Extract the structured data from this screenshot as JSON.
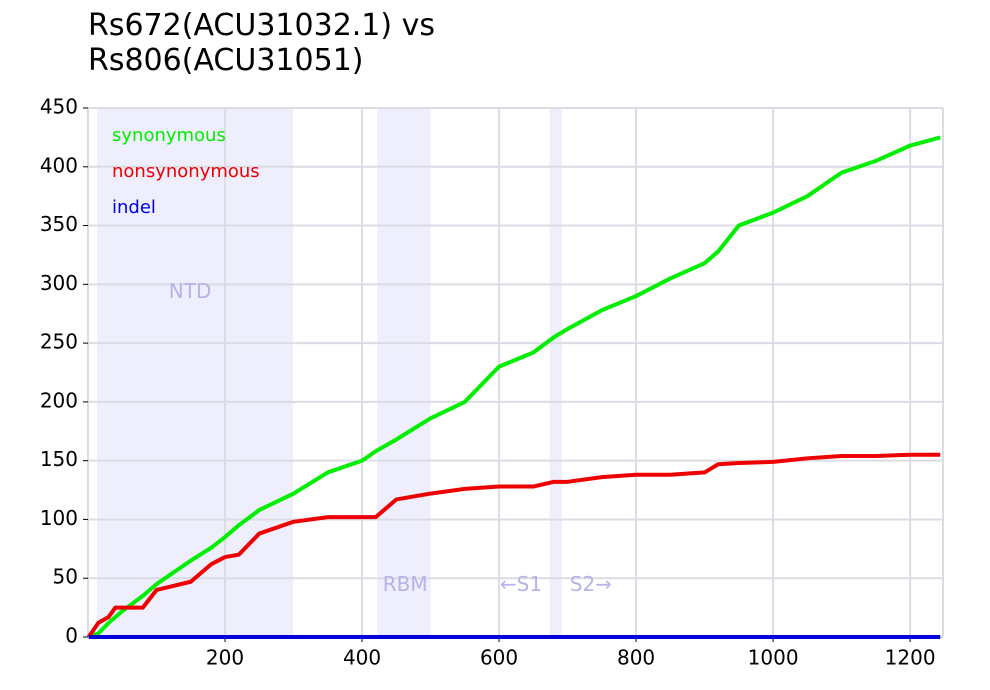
{
  "chart_data": {
    "type": "line",
    "title": "Rs672(ACU31032.1) vs Rs806(ACU31051)",
    "x": [
      1,
      15,
      30,
      40,
      50,
      80,
      100,
      150,
      180,
      200,
      220,
      250,
      300,
      350,
      400,
      420,
      450,
      500,
      550,
      600,
      650,
      680,
      700,
      750,
      800,
      850,
      900,
      920,
      950,
      1000,
      1050,
      1100,
      1150,
      1200,
      1244
    ],
    "series": [
      {
        "name": "synonymous",
        "color": "#00ee00",
        "values": [
          0,
          3,
          12,
          17,
          22,
          35,
          45,
          65,
          76,
          85,
          95,
          108,
          122,
          140,
          150,
          158,
          168,
          186,
          200,
          230,
          242,
          255,
          262,
          278,
          290,
          305,
          318,
          328,
          350,
          361,
          375,
          395,
          405,
          418,
          425
        ]
      },
      {
        "name": "nonsynonymous",
        "color": "#ee0000",
        "values": [
          0,
          12,
          17,
          25,
          25,
          25,
          40,
          47,
          62,
          68,
          70,
          88,
          98,
          102,
          102,
          102,
          117,
          122,
          126,
          128,
          128,
          132,
          132,
          136,
          138,
          138,
          140,
          147,
          148,
          149,
          152,
          154,
          154,
          155,
          155
        ]
      },
      {
        "name": "indel",
        "color": "#0000dd",
        "values": [
          0,
          0,
          0,
          0,
          0,
          0,
          0,
          0,
          0,
          0,
          0,
          0,
          0,
          0,
          0,
          0,
          0,
          0,
          0,
          0,
          0,
          0,
          0,
          0,
          0,
          0,
          0,
          0,
          0,
          0,
          0,
          0,
          0,
          0,
          0
        ]
      }
    ],
    "xlim": [
      0,
      1248
    ],
    "ylim": [
      0,
      450
    ],
    "xticks": [
      200,
      400,
      600,
      800,
      1000,
      1200
    ],
    "yticks": [
      0,
      50,
      100,
      150,
      200,
      250,
      300,
      350,
      400,
      450
    ],
    "grid": true,
    "legend": "upper-left",
    "regions": [
      {
        "start": 13,
        "end": 299,
        "color": "#eeeefc"
      },
      {
        "start": 422,
        "end": 500,
        "color": "#eeeefc"
      },
      {
        "start": 674,
        "end": 692,
        "color": "#eeeefc"
      }
    ],
    "annotations": [
      {
        "text": "NTD",
        "x": 149,
        "y": 293
      },
      {
        "text": "RBM",
        "x": 463,
        "y": 44
      },
      {
        "text": "←S1",
        "x": 632,
        "y": 44
      },
      {
        "text": "S2→",
        "x": 734,
        "y": 44
      }
    ]
  }
}
